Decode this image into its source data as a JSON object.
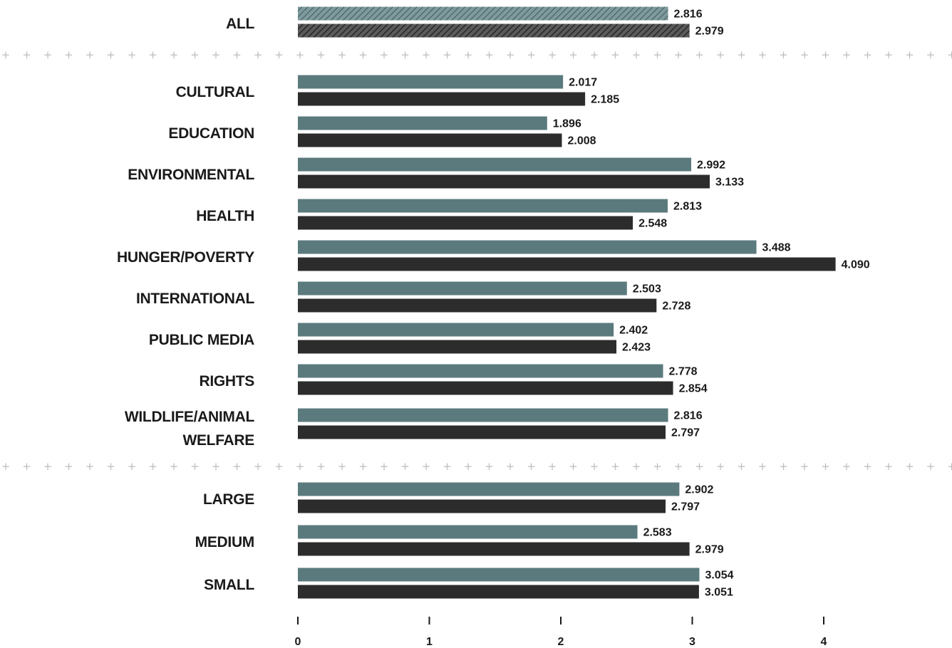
{
  "chart_data": {
    "type": "bar",
    "orientation": "horizontal",
    "xlim": [
      0,
      4
    ],
    "x_ticks": [
      "0",
      "1",
      "2",
      "3",
      "4"
    ],
    "colors": {
      "series_a": "#5b7a7e",
      "series_b": "#2c2c2c",
      "separator": "#bdbdbd",
      "text": "#1a1a1a"
    },
    "groups": [
      {
        "categories": [
          {
            "label": "ALL",
            "values": [
              "2.816",
              "2.979"
            ],
            "hatched": true
          }
        ]
      },
      {
        "categories": [
          {
            "label": "CULTURAL",
            "values": [
              "2.017",
              "2.185"
            ]
          },
          {
            "label": "EDUCATION",
            "values": [
              "1.896",
              "2.008"
            ]
          },
          {
            "label": "ENVIRONMENTAL",
            "values": [
              "2.992",
              "3.133"
            ]
          },
          {
            "label": "HEALTH",
            "values": [
              "2.813",
              "2.548"
            ]
          },
          {
            "label": "HUNGER/POVERTY",
            "values": [
              "3.488",
              "4.090"
            ]
          },
          {
            "label": "INTERNATIONAL",
            "values": [
              "2.503",
              "2.728"
            ]
          },
          {
            "label": "PUBLIC MEDIA",
            "values": [
              "2.402",
              "2.423"
            ]
          },
          {
            "label": "RIGHTS",
            "values": [
              "2.778",
              "2.854"
            ]
          },
          {
            "label": "WILDLIFE/ANIMAL WELFARE",
            "label_lines": [
              "WILDLIFE/ANIMAL",
              "WELFARE"
            ],
            "values": [
              "2.816",
              "2.797"
            ]
          }
        ]
      },
      {
        "categories": [
          {
            "label": "LARGE",
            "values": [
              "2.902",
              "2.797"
            ]
          },
          {
            "label": "MEDIUM",
            "values": [
              "2.583",
              "2.979"
            ]
          },
          {
            "label": "SMALL",
            "values": [
              "3.054",
              "3.051"
            ]
          }
        ]
      }
    ]
  }
}
